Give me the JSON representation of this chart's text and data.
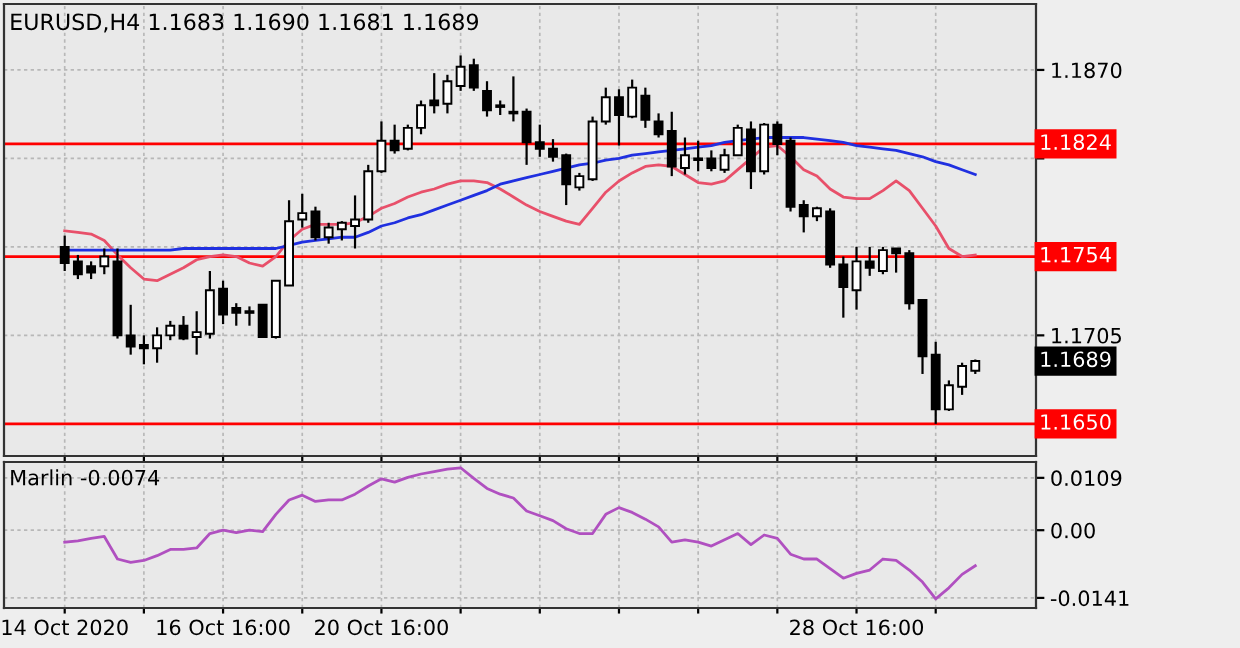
{
  "chart_data": [
    {
      "type": "candlestick",
      "title": "EURUSD,H4 1.1683 1.1690 1.1681 1.1689",
      "categories": [
        null,
        null,
        null,
        null,
        null,
        null,
        null,
        null,
        null,
        null,
        null,
        null,
        null,
        null,
        null,
        null,
        null,
        null,
        null,
        null,
        null,
        null,
        null,
        null,
        null,
        null,
        null,
        null,
        null,
        null,
        null,
        null,
        null,
        null,
        null,
        null,
        null,
        null,
        null,
        null,
        null,
        null,
        null,
        null,
        null,
        null,
        null,
        null,
        null,
        null,
        null,
        null,
        null,
        null,
        null,
        null,
        null,
        null,
        null,
        null,
        null,
        null,
        null,
        null,
        null,
        null,
        null,
        null,
        null,
        null
      ],
      "ohlc": [
        [
          1.176,
          1.1767,
          1.1745,
          1.175
        ],
        [
          1.1751,
          1.1755,
          1.174,
          1.1743
        ],
        [
          1.1748,
          1.1751,
          1.174,
          1.1744
        ],
        [
          1.1748,
          1.1759,
          1.1743,
          1.1754
        ],
        [
          1.1751,
          1.1759,
          1.1703,
          1.1705
        ],
        [
          1.1705,
          1.1724,
          1.1693,
          1.1698
        ],
        [
          1.1699,
          1.1705,
          1.1687,
          1.1697
        ],
        [
          1.1697,
          1.171,
          1.1688,
          1.1705
        ],
        [
          1.1705,
          1.1714,
          1.1702,
          1.1711
        ],
        [
          1.1711,
          1.1717,
          1.1702,
          1.1703
        ],
        [
          1.1704,
          1.172,
          1.1693,
          1.1707
        ],
        [
          1.1706,
          1.1745,
          1.1703,
          1.1733
        ],
        [
          1.1734,
          1.1739,
          1.1712,
          1.1718
        ],
        [
          1.1722,
          1.1725,
          1.1711,
          1.1719
        ],
        [
          1.172,
          1.1723,
          1.1711,
          1.1719
        ],
        [
          1.1724,
          1.1724,
          1.1704,
          1.1704
        ],
        [
          1.1704,
          1.1739,
          1.1703,
          1.1739
        ],
        [
          1.1736,
          1.1789,
          1.1736,
          1.1776
        ],
        [
          1.1777,
          1.1793,
          1.1772,
          1.1781
        ],
        [
          1.1782,
          1.1785,
          1.1764,
          1.1766
        ],
        [
          1.1766,
          1.1775,
          1.1762,
          1.1772
        ],
        [
          1.1771,
          1.1776,
          1.1764,
          1.1775
        ],
        [
          1.1773,
          1.1792,
          1.1759,
          1.1777
        ],
        [
          1.1777,
          1.1811,
          1.1775,
          1.1807
        ],
        [
          1.1807,
          1.1838,
          1.1806,
          1.1826
        ],
        [
          1.1826,
          1.1836,
          1.1818,
          1.182
        ],
        [
          1.1821,
          1.1836,
          1.182,
          1.1834
        ],
        [
          1.1834,
          1.1851,
          1.183,
          1.1848
        ],
        [
          1.1851,
          1.1868,
          1.1843,
          1.1848
        ],
        [
          1.1849,
          1.1867,
          1.1843,
          1.1863
        ],
        [
          1.186,
          1.1879,
          1.1857,
          1.1872
        ],
        [
          1.1873,
          1.1877,
          1.1857,
          1.1859
        ],
        [
          1.1857,
          1.1863,
          1.1841,
          1.1845
        ],
        [
          1.1848,
          1.1851,
          1.1842,
          1.1847
        ],
        [
          1.1844,
          1.1866,
          1.1838,
          1.1843
        ],
        [
          1.1844,
          1.1846,
          1.1811,
          1.1825
        ],
        [
          1.1825,
          1.1836,
          1.1816,
          1.1821
        ],
        [
          1.1821,
          1.1827,
          1.1813,
          1.1816
        ],
        [
          1.1817,
          1.1818,
          1.1786,
          1.1799
        ],
        [
          1.1797,
          1.1806,
          1.1795,
          1.1804
        ],
        [
          1.1802,
          1.1841,
          1.1801,
          1.1838
        ],
        [
          1.1838,
          1.1859,
          1.1836,
          1.1853
        ],
        [
          1.1853,
          1.1858,
          1.1823,
          1.1842
        ],
        [
          1.1841,
          1.1864,
          1.184,
          1.1859
        ],
        [
          1.1854,
          1.1859,
          1.1834,
          1.1839
        ],
        [
          1.1838,
          1.1843,
          1.1828,
          1.183
        ],
        [
          1.1832,
          1.1844,
          1.1804,
          1.181
        ],
        [
          1.1809,
          1.1828,
          1.1805,
          1.1817
        ],
        [
          1.1814,
          1.1826,
          1.1807,
          1.1815
        ],
        [
          1.1815,
          1.182,
          1.1807,
          1.1809
        ],
        [
          1.1808,
          1.1821,
          1.1806,
          1.1817
        ],
        [
          1.1817,
          1.1836,
          1.1817,
          1.1834
        ],
        [
          1.1833,
          1.1838,
          1.1796,
          1.1807
        ],
        [
          1.1807,
          1.1837,
          1.1805,
          1.1836
        ],
        [
          1.1836,
          1.1838,
          1.1817,
          1.1824
        ],
        [
          1.1826,
          1.1828,
          1.1782,
          1.1785
        ],
        [
          1.1786,
          1.1789,
          1.1769,
          1.1779
        ],
        [
          1.1779,
          1.1785,
          1.1776,
          1.1784
        ],
        [
          1.1782,
          1.1784,
          1.1747,
          1.1749
        ],
        [
          1.1749,
          1.1754,
          1.1716,
          1.1735
        ],
        [
          1.1733,
          1.176,
          1.1721,
          1.1751
        ],
        [
          1.1751,
          1.176,
          1.1742,
          1.1747
        ],
        [
          1.1745,
          1.176,
          1.1743,
          1.1758
        ],
        [
          1.1759,
          1.1759,
          1.1744,
          1.1756
        ],
        [
          1.1756,
          1.1758,
          1.1721,
          1.1725
        ],
        [
          1.1727,
          1.1727,
          1.1681,
          1.1692
        ],
        [
          1.1693,
          1.1701,
          1.165,
          1.1659
        ],
        [
          1.1659,
          1.1677,
          1.1658,
          1.1674
        ],
        [
          1.1673,
          1.1688,
          1.1668,
          1.1686
        ],
        [
          1.1683,
          1.169,
          1.1681,
          1.1689
        ]
      ],
      "series": [
        {
          "type": "line",
          "color": "#e8506a",
          "values": [
            1.177,
            1.1769,
            1.1768,
            1.1764,
            1.1755,
            1.1747,
            1.174,
            1.1739,
            1.1743,
            1.1747,
            1.1752,
            1.1754,
            1.1755,
            1.1754,
            1.175,
            1.1748,
            1.1754,
            1.1764,
            1.1771,
            1.1774,
            1.1774,
            1.1774,
            1.1775,
            1.1779,
            1.1784,
            1.1787,
            1.1791,
            1.1794,
            1.1796,
            1.1799,
            1.1801,
            1.1801,
            1.18,
            1.1796,
            1.1791,
            1.1786,
            1.1782,
            1.1779,
            1.1776,
            1.1774,
            1.1784,
            1.1794,
            1.1801,
            1.1806,
            1.181,
            1.1811,
            1.181,
            1.1805,
            1.18,
            1.1799,
            1.1801,
            1.1808,
            1.1815,
            1.1822,
            1.1823,
            1.1816,
            1.1808,
            1.1804,
            1.1796,
            1.1791,
            1.179,
            1.179,
            1.1795,
            1.1801,
            1.1795,
            1.1784,
            1.1773,
            1.1759,
            1.1754,
            1.1755
          ]
        },
        {
          "type": "line",
          "color": "#2030e0",
          "values": [
            1.1758,
            1.1758,
            1.1758,
            1.1758,
            1.1758,
            1.1758,
            1.1758,
            1.1758,
            1.1758,
            1.1759,
            1.1759,
            1.1759,
            1.1759,
            1.1759,
            1.1759,
            1.1759,
            1.1759,
            1.1761,
            1.1763,
            1.1764,
            1.1765,
            1.1766,
            1.1766,
            1.1769,
            1.1773,
            1.1775,
            1.1778,
            1.178,
            1.1783,
            1.1786,
            1.1789,
            1.1792,
            1.1795,
            1.1799,
            1.1801,
            1.1803,
            1.1805,
            1.1807,
            1.1809,
            1.1811,
            1.1812,
            1.1814,
            1.1815,
            1.1817,
            1.1818,
            1.1819,
            1.182,
            1.1821,
            1.1822,
            1.1823,
            1.1825,
            1.1826,
            1.1827,
            1.1828,
            1.1828,
            1.1828,
            1.1828,
            1.1827,
            1.1826,
            1.1825,
            1.1823,
            1.1822,
            1.1821,
            1.182,
            1.1818,
            1.1816,
            1.1813,
            1.1811,
            1.1808,
            1.1805
          ]
        }
      ],
      "ylim": [
        1.163,
        1.1911
      ],
      "yticks": [
        {
          "value": 1.187,
          "label": "1.1870"
        },
        {
          "value": 1.1815,
          "label": null
        },
        {
          "value": 1.176,
          "label": null
        },
        {
          "value": 1.1705,
          "label": "1.1705"
        }
      ],
      "grid": true,
      "tick_labels": "y",
      "ref_lines": [
        {
          "axis": "y",
          "value": 1.1824,
          "label": "1.1824",
          "color": "#ff0000"
        },
        {
          "axis": "y",
          "value": 1.1754,
          "label": "1.1754",
          "color": "#ff0000"
        },
        {
          "axis": "y",
          "value": 1.165,
          "label": "1.1650",
          "color": "#ff0000"
        }
      ],
      "annotations": [
        "1.1689"
      ]
    },
    {
      "type": "line",
      "title": "Marlin -0.0074",
      "categories": [
        "14 Oct 2020",
        null,
        null,
        null,
        null,
        null,
        null,
        null,
        null,
        null,
        null,
        null,
        "16 Oct 16:00",
        null,
        null,
        null,
        null,
        null,
        null,
        null,
        null,
        null,
        null,
        null,
        "20 Oct 16:00",
        null,
        null,
        null,
        null,
        null,
        null,
        null,
        null,
        null,
        null,
        null,
        null,
        null,
        null,
        null,
        null,
        null,
        null,
        null,
        null,
        null,
        null,
        null,
        null,
        null,
        null,
        null,
        null,
        null,
        null,
        null,
        null,
        null,
        null,
        null,
        "28 Oct 16:00",
        null,
        null,
        null,
        null,
        null,
        null,
        null,
        null,
        null
      ],
      "series": [
        {
          "color": "#b050c0",
          "values": [
            -0.0025,
            -0.0022,
            -0.0017,
            -0.0013,
            -0.006,
            -0.0067,
            -0.0063,
            -0.0053,
            -0.004,
            -0.004,
            -0.0037,
            -0.0007,
            0.0,
            -0.0005,
            0.0,
            -0.0003,
            0.0033,
            0.0063,
            0.0073,
            0.006,
            0.0063,
            0.0063,
            0.0075,
            0.0092,
            0.0107,
            0.01,
            0.011,
            0.0117,
            0.0122,
            0.0127,
            0.013,
            0.0108,
            0.0087,
            0.0075,
            0.0067,
            0.004,
            0.003,
            0.002,
            0.0003,
            -0.0007,
            -0.0007,
            0.0033,
            0.0047,
            0.0037,
            0.0023,
            0.0007,
            -0.0025,
            -0.002,
            -0.0025,
            -0.0033,
            -0.002,
            -0.0007,
            -0.003,
            -0.001,
            -0.0017,
            -0.005,
            -0.006,
            -0.006,
            -0.008,
            -0.01,
            -0.009,
            -0.0083,
            -0.006,
            -0.0063,
            -0.0083,
            -0.0108,
            -0.0143,
            -0.012,
            -0.0092,
            -0.0074
          ]
        }
      ],
      "ylim": [
        -0.0162,
        0.0142
      ],
      "yticks": [
        0.0109,
        {
          "value": 0,
          "label": "0.00"
        },
        -0.0141
      ],
      "grid": true
    }
  ]
}
